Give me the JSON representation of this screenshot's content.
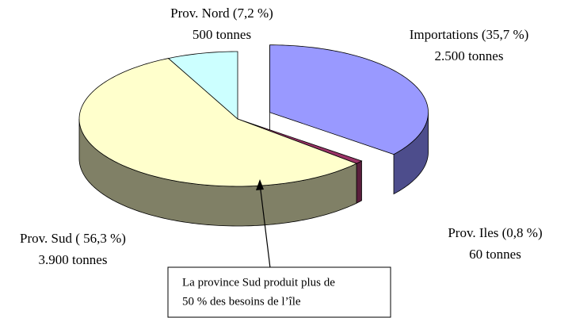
{
  "chart_data": {
    "type": "pie3d",
    "categories": [
      "Importations (35,7 %)",
      "Prov. Iles (0,8 %)",
      "Prov. Sud ( 56,3 %)",
      "Prov. Nord (7,2 %)"
    ],
    "values": [
      35.7,
      0.8,
      56.3,
      7.2
    ],
    "sublabels": [
      "2.500 tonnes",
      "60 tonnes",
      "3.900 tonnes",
      "500 tonnes"
    ],
    "colors": [
      "#9999ff",
      "#993366",
      "#ffffcc",
      "#ccffff"
    ],
    "side_colors": [
      "#4d4d8c",
      "#5a1e3c",
      "#808066",
      "#8ab3b3"
    ],
    "exploded": [
      true,
      false,
      false,
      false
    ],
    "annotation": [
      "La province Sud produit plus de",
      "50 % des besoins de l’île"
    ]
  }
}
